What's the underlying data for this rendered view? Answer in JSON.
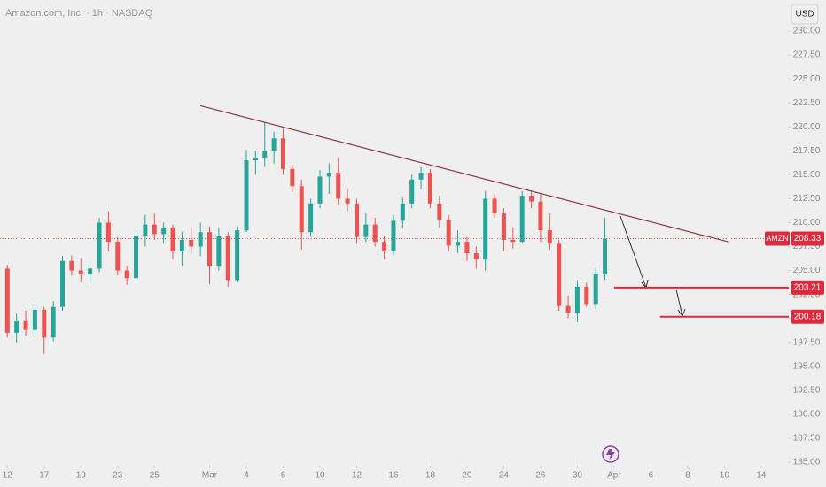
{
  "chart_data": {
    "type": "candlestick",
    "title": "Amazon.com, Inc. · 1h · NASDAQ",
    "currency": "USD",
    "symbol": "AMZN",
    "last_price": {
      "value": 208.33,
      "label": "208.33"
    },
    "up_color": "#26a69a",
    "down_color": "#ef5350",
    "level_color": "#e0293a",
    "trendline_color": "#8b3a46",
    "xlim": [
      -0.4,
      42.5
    ],
    "ylim": [
      185,
      230
    ],
    "xticks": [
      {
        "value": 0,
        "label": "12"
      },
      {
        "value": 2,
        "label": "17"
      },
      {
        "value": 4,
        "label": "19"
      },
      {
        "value": 6,
        "label": "23"
      },
      {
        "value": 8,
        "label": "25"
      },
      {
        "value": 11,
        "label": "Mar"
      },
      {
        "value": 13,
        "label": "4"
      },
      {
        "value": 15,
        "label": "6"
      },
      {
        "value": 17,
        "label": "10"
      },
      {
        "value": 19,
        "label": "12"
      },
      {
        "value": 21,
        "label": "16"
      },
      {
        "value": 23,
        "label": "18"
      },
      {
        "value": 25,
        "label": "20"
      },
      {
        "value": 27,
        "label": "24"
      },
      {
        "value": 29,
        "label": "26"
      },
      {
        "value": 31,
        "label": "30"
      },
      {
        "value": 33,
        "label": "Apr"
      },
      {
        "value": 35,
        "label": "6"
      },
      {
        "value": 37,
        "label": "8"
      },
      {
        "value": 39,
        "label": "10"
      },
      {
        "value": 41,
        "label": "14"
      }
    ],
    "yticks": [
      {
        "value": 185,
        "label": "185.00"
      },
      {
        "value": 187.5,
        "label": "187.50"
      },
      {
        "value": 190,
        "label": "190.00"
      },
      {
        "value": 192.5,
        "label": "192.50"
      },
      {
        "value": 195,
        "label": "195.00"
      },
      {
        "value": 197.5,
        "label": "197.50"
      },
      {
        "value": 200,
        "label": "200.00"
      },
      {
        "value": 202.5,
        "label": "202.50"
      },
      {
        "value": 205,
        "label": "205.00"
      },
      {
        "value": 207.5,
        "label": "207.50"
      },
      {
        "value": 210,
        "label": "210.00"
      },
      {
        "value": 212.5,
        "label": "212.50"
      },
      {
        "value": 215,
        "label": "215.00"
      },
      {
        "value": 217.5,
        "label": "217.50"
      },
      {
        "value": 220,
        "label": "220.00"
      },
      {
        "value": 222.5,
        "label": "222.50"
      },
      {
        "value": 225,
        "label": "225.00"
      },
      {
        "value": 227.5,
        "label": "227.50"
      },
      {
        "value": 230,
        "label": "230.00"
      }
    ],
    "x": [
      0,
      0.5,
      1,
      1.5,
      2,
      2.5,
      3,
      3.5,
      4,
      4.5,
      5,
      5.5,
      6,
      6.5,
      7,
      7.5,
      8,
      8.5,
      9,
      9.5,
      10,
      10.5,
      11,
      11.5,
      12,
      12.5,
      13,
      13.5,
      14,
      14.5,
      15,
      15.5,
      16,
      16.5,
      17,
      17.5,
      18,
      18.5,
      19,
      19.5,
      20,
      20.5,
      21,
      21.5,
      22,
      22.5,
      23,
      23.5,
      24,
      24.5,
      25,
      25.5,
      26,
      26.5,
      27,
      27.5,
      28,
      28.5,
      29,
      29.5,
      30,
      30.5,
      31,
      31.5,
      32,
      32.5
    ],
    "open": [
      205.2,
      198.5,
      199.8,
      198.8,
      200.9,
      198,
      201.2,
      206,
      205,
      204.6,
      205.2,
      210,
      208,
      205,
      204.2,
      208.6,
      209.8,
      208.8,
      209.5,
      207,
      208.2,
      207.5,
      209,
      205.5,
      208.6,
      204,
      209.2,
      216.5,
      216.8,
      217.5,
      218.8,
      215.6,
      213.8,
      209,
      212,
      214.8,
      215.2,
      212.5,
      212,
      208.5,
      209.8,
      208,
      207,
      210.2,
      212,
      214.5,
      215.2,
      212,
      210.3,
      207.6,
      208,
      206.8,
      206.2,
      212.5,
      211,
      208.2,
      208,
      212.8,
      212.2,
      209.2,
      207.8,
      201.3,
      200.6,
      203.3,
      201.5,
      204.6
    ],
    "high": [
      205.6,
      200.5,
      200.8,
      201.5,
      201.2,
      201.8,
      206.5,
      206.6,
      206.3,
      205.8,
      210.5,
      211.2,
      208.5,
      205.5,
      209,
      210.8,
      211,
      210,
      209.8,
      209,
      209.5,
      210,
      209.6,
      209.5,
      209,
      209.6,
      217.6,
      217.5,
      220.5,
      219.5,
      219.8,
      216,
      214.5,
      212.5,
      215.5,
      216.2,
      216.8,
      213.5,
      212.5,
      211,
      210.5,
      208.6,
      210.8,
      212.6,
      215,
      215.8,
      215.6,
      212.8,
      210.8,
      209.2,
      208.5,
      207.5,
      213.3,
      213,
      211.5,
      209.5,
      213.3,
      213.3,
      213,
      211,
      208.2,
      202.4,
      204,
      203.7,
      205.2,
      210.5
    ],
    "low": [
      198,
      197.5,
      198.2,
      198.3,
      196.3,
      197.6,
      200.8,
      204.5,
      203.8,
      203.5,
      204.8,
      207,
      204.5,
      203.5,
      203.8,
      207.5,
      208.2,
      207.8,
      206.2,
      205.5,
      206.8,
      206.5,
      203.6,
      205,
      203.3,
      203.8,
      209,
      215,
      215.8,
      216.2,
      215,
      213.2,
      207.2,
      208.5,
      211.5,
      213,
      211.8,
      211.2,
      207.8,
      208,
      207.5,
      206.2,
      206.6,
      209.5,
      211.5,
      213.5,
      211.5,
      209.5,
      207,
      206.8,
      206,
      205.2,
      205,
      210.5,
      207,
      207.3,
      207.8,
      211.5,
      208,
      207.2,
      200.8,
      200,
      199.6,
      201.2,
      201,
      204
    ],
    "close": [
      198.5,
      199.8,
      198.8,
      200.9,
      198,
      201.2,
      206,
      205,
      204.6,
      205.2,
      210,
      208,
      205,
      204.2,
      208.6,
      209.8,
      208.8,
      209.5,
      207,
      208.2,
      207.5,
      209,
      205.5,
      208.6,
      204,
      209.2,
      216.5,
      216.8,
      217.5,
      218.8,
      215.6,
      213.8,
      209,
      212,
      214.8,
      215.2,
      212.5,
      212,
      208.5,
      209.8,
      208,
      207,
      210.2,
      212,
      214.5,
      215.2,
      212,
      210.3,
      207.6,
      208,
      206.8,
      206.2,
      212.5,
      211,
      208.2,
      208,
      212.8,
      212.2,
      209.2,
      207.8,
      201.3,
      200.6,
      203.3,
      201.5,
      204.6,
      208.33
    ],
    "trendline": {
      "x": [
        10.5,
        39.2
      ],
      "y": [
        222.2,
        208.0
      ]
    },
    "levels": [
      {
        "value": 203.21,
        "label": "203.21",
        "x_start": 33.0
      },
      {
        "value": 200.18,
        "label": "200.18",
        "x_start": 35.5
      }
    ]
  }
}
